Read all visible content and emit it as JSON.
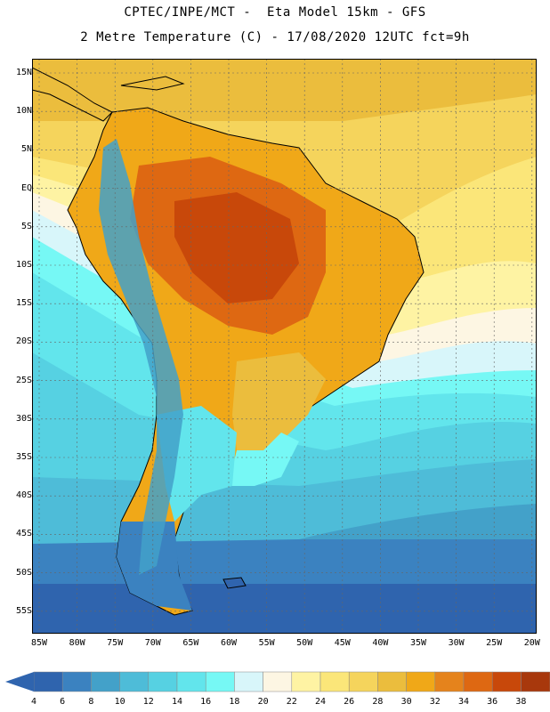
{
  "header": {
    "line1": "CPTEC/INPE/MCT -  Eta Model 15km - GFS",
    "line2": "2 Metre Temperature (C) - 17/08/2020 12UTC fct=9h"
  },
  "axes": {
    "lat_labels": [
      "15N",
      "10N",
      "5N",
      "EQ",
      "5S",
      "10S",
      "15S",
      "20S",
      "25S",
      "30S",
      "35S",
      "40S",
      "45S",
      "50S",
      "55S"
    ],
    "lon_labels": [
      "85W",
      "80W",
      "75W",
      "70W",
      "65W",
      "60W",
      "55W",
      "50W",
      "45W",
      "40W",
      "35W",
      "30W",
      "25W",
      "20W"
    ]
  },
  "colorbar": {
    "labels": [
      "4",
      "6",
      "8",
      "10",
      "12",
      "14",
      "16",
      "18",
      "20",
      "22",
      "24",
      "26",
      "28",
      "30",
      "32",
      "34",
      "36",
      "38"
    ],
    "colors": [
      "#2f64ae",
      "#3b82c0",
      "#43a1c9",
      "#4ebcd8",
      "#56d1e2",
      "#62e5ec",
      "#76f8f5",
      "#d8f6fa",
      "#fdf6e3",
      "#fef3a3",
      "#fbe679",
      "#f5d45c",
      "#ebbd3d",
      "#f0a818",
      "#e5831c",
      "#de6812",
      "#c8480a",
      "#a8380c"
    ]
  },
  "map_legend": {
    "units": "C"
  }
}
